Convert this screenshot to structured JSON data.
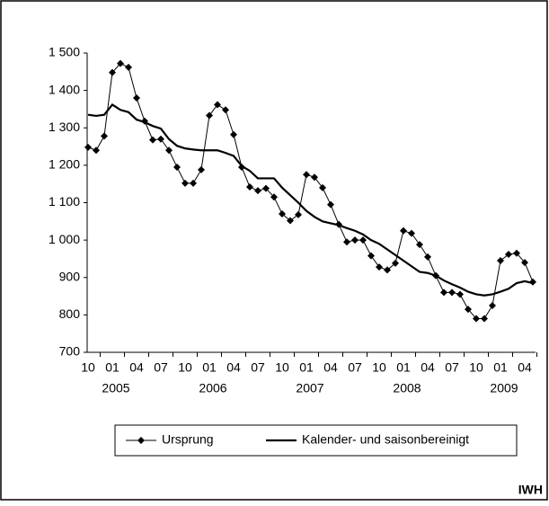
{
  "chart_data": {
    "type": "line",
    "categories": [
      "10",
      null,
      null,
      "01",
      null,
      null,
      "04",
      null,
      null,
      "07",
      null,
      null,
      "10",
      null,
      null,
      "01",
      null,
      null,
      "04",
      null,
      null,
      "07",
      null,
      null,
      "10",
      null,
      null,
      "01",
      null,
      null,
      "04",
      null,
      null,
      "07",
      null,
      null,
      "10",
      null,
      null,
      "01",
      null,
      null,
      "04",
      null,
      null,
      "07",
      null,
      null,
      "10",
      null,
      null,
      "01",
      null,
      null,
      "04",
      null
    ],
    "years": [
      "2005",
      "2006",
      "2007",
      "2008",
      "2009"
    ],
    "series": [
      {
        "name": "Ursprung",
        "color": "#000000",
        "marker": "diamond",
        "values": [
          1248,
          1240,
          1278,
          1448,
          1472,
          1462,
          1380,
          1318,
          1268,
          1270,
          1240,
          1195,
          1152,
          1152,
          1188,
          1333,
          1362,
          1348,
          1282,
          1195,
          1142,
          1132,
          1138,
          1115,
          1070,
          1052,
          1068,
          1175,
          1168,
          1140,
          1095,
          1042,
          995,
          1000,
          1000,
          958,
          928,
          920,
          938,
          1025,
          1018,
          988,
          955,
          905,
          860,
          860,
          855,
          815,
          790,
          790,
          825,
          945,
          962,
          965,
          940,
          888
        ]
      },
      {
        "name": "Kalender- und saisonbereinigt",
        "color": "#000000",
        "values": [
          1335,
          1332,
          1335,
          1362,
          1348,
          1342,
          1322,
          1315,
          1305,
          1298,
          1270,
          1252,
          1245,
          1242,
          1240,
          1240,
          1240,
          1233,
          1225,
          1198,
          1185,
          1165,
          1165,
          1165,
          1140,
          1120,
          1100,
          1078,
          1062,
          1050,
          1045,
          1040,
          1032,
          1025,
          1015,
          1000,
          990,
          975,
          960,
          945,
          930,
          915,
          912,
          905,
          892,
          882,
          873,
          862,
          855,
          852,
          855,
          862,
          870,
          885,
          890,
          885
        ]
      }
    ],
    "ylim": [
      700,
      1500
    ],
    "yticks": [
      700,
      800,
      900,
      {
        "value": 1000,
        "label": "1 000"
      },
      {
        "value": 1100,
        "label": "1 100"
      },
      {
        "value": 1200,
        "label": "1 200"
      },
      {
        "value": 1300,
        "label": "1 300"
      },
      {
        "value": 1400,
        "label": "1 400"
      },
      {
        "value": 1500,
        "label": "1 500"
      }
    ],
    "grid": false,
    "source": "IWH"
  }
}
